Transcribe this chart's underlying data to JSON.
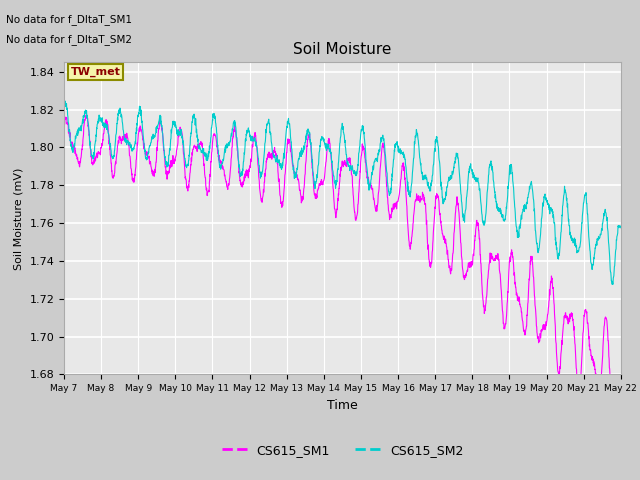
{
  "title": "Soil Moisture",
  "xlabel": "Time",
  "ylabel": "Soil Moisture (mV)",
  "ylim": [
    1.68,
    1.845
  ],
  "yticks": [
    1.68,
    1.7,
    1.72,
    1.74,
    1.76,
    1.78,
    1.8,
    1.82,
    1.84
  ],
  "no_data_text1": "No data for f_DltaT_SM1",
  "no_data_text2": "No data for f_DltaT_SM2",
  "tw_met_label": "TW_met",
  "legend_labels": [
    "CS615_SM1",
    "CS615_SM2"
  ],
  "line1_color": "#ff00ff",
  "line2_color": "#00cccc",
  "x_tick_days": [
    7,
    8,
    9,
    10,
    11,
    12,
    13,
    14,
    15,
    16,
    17,
    18,
    19,
    20,
    21,
    22
  ],
  "figsize": [
    6.4,
    4.8
  ],
  "dpi": 100
}
